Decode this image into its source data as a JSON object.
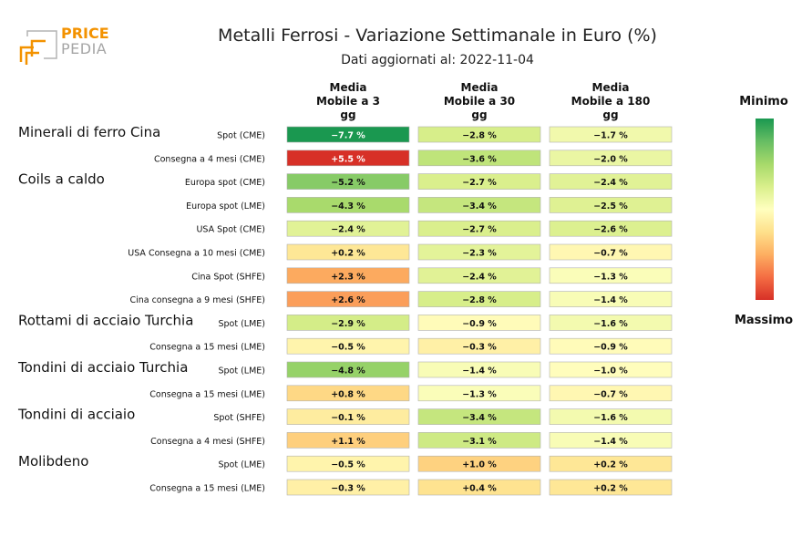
{
  "logo": {
    "brand_top": "PRICE",
    "brand_bottom": "PEDIA"
  },
  "chart_data": {
    "type": "heatmap",
    "title": "Metalli Ferrosi - Variazione Settimanale in Euro (%)",
    "subtitle": "Dati aggiornati al: 2022-11-04",
    "columns": [
      {
        "lines": [
          "Media",
          "Mobile a 3",
          "gg"
        ]
      },
      {
        "lines": [
          "Media",
          "Mobile a 30",
          "gg"
        ]
      },
      {
        "lines": [
          "Media",
          "Mobile a 180",
          "gg"
        ]
      }
    ],
    "groups": [
      {
        "name": "Minerali di ferro Cina",
        "rows": [
          {
            "label": "Spot (CME)",
            "values": [
              -7.7,
              -2.8,
              -1.7
            ],
            "display": [
              "−7.7 %",
              "−2.8 %",
              "−1.7 %"
            ]
          },
          {
            "label": "Consegna a 4 mesi (CME)",
            "values": [
              5.5,
              -3.6,
              -2.0
            ],
            "display": [
              "+5.5 %",
              "−3.6 %",
              "−2.0 %"
            ]
          }
        ]
      },
      {
        "name": "Coils a caldo",
        "rows": [
          {
            "label": "Europa spot (CME)",
            "values": [
              -5.2,
              -2.7,
              -2.4
            ],
            "display": [
              "−5.2 %",
              "−2.7 %",
              "−2.4 %"
            ]
          },
          {
            "label": "Europa spot (LME)",
            "values": [
              -4.3,
              -3.4,
              -2.5
            ],
            "display": [
              "−4.3 %",
              "−3.4 %",
              "−2.5 %"
            ]
          },
          {
            "label": "USA Spot (CME)",
            "values": [
              -2.4,
              -2.7,
              -2.6
            ],
            "display": [
              "−2.4 %",
              "−2.7 %",
              "−2.6 %"
            ]
          },
          {
            "label": "USA Consegna a 10 mesi (CME)",
            "values": [
              0.2,
              -2.3,
              -0.7
            ],
            "display": [
              "+0.2 %",
              "−2.3 %",
              "−0.7 %"
            ]
          },
          {
            "label": "Cina Spot (SHFE)",
            "values": [
              2.3,
              -2.4,
              -1.3
            ],
            "display": [
              "+2.3 %",
              "−2.4 %",
              "−1.3 %"
            ]
          },
          {
            "label": "Cina consegna a 9 mesi (SHFE)",
            "values": [
              2.6,
              -2.8,
              -1.4
            ],
            "display": [
              "+2.6 %",
              "−2.8 %",
              "−1.4 %"
            ]
          }
        ]
      },
      {
        "name": "Rottami di acciaio Turchia",
        "rows": [
          {
            "label": "Spot (LME)",
            "values": [
              -2.9,
              -0.9,
              -1.6
            ],
            "display": [
              "−2.9 %",
              "−0.9 %",
              "−1.6 %"
            ]
          },
          {
            "label": "Consegna a 15 mesi (LME)",
            "values": [
              -0.5,
              -0.3,
              -0.9
            ],
            "display": [
              "−0.5 %",
              "−0.3 %",
              "−0.9 %"
            ]
          }
        ]
      },
      {
        "name": "Tondini di acciaio Turchia",
        "rows": [
          {
            "label": "Spot (LME)",
            "values": [
              -4.8,
              -1.4,
              -1.0
            ],
            "display": [
              "−4.8 %",
              "−1.4 %",
              "−1.0 %"
            ]
          },
          {
            "label": "Consegna a 15 mesi (LME)",
            "values": [
              0.8,
              -1.3,
              -0.7
            ],
            "display": [
              "+0.8 %",
              "−1.3 %",
              "−0.7 %"
            ]
          }
        ]
      },
      {
        "name": "Tondini di acciaio",
        "rows": [
          {
            "label": "Spot (SHFE)",
            "values": [
              -0.1,
              -3.4,
              -1.6
            ],
            "display": [
              "−0.1 %",
              "−3.4 %",
              "−1.6 %"
            ]
          },
          {
            "label": "Consegna a 4 mesi (SHFE)",
            "values": [
              1.1,
              -3.1,
              -1.4
            ],
            "display": [
              "+1.1 %",
              "−3.1 %",
              "−1.4 %"
            ]
          }
        ]
      },
      {
        "name": "Molibdeno",
        "rows": [
          {
            "label": "Spot (LME)",
            "values": [
              -0.5,
              1.0,
              0.2
            ],
            "display": [
              "−0.5 %",
              "+1.0 %",
              "+0.2 %"
            ]
          },
          {
            "label": "Consegna a 15 mesi (LME)",
            "values": [
              -0.3,
              0.4,
              0.2
            ],
            "display": [
              "−0.3 %",
              "+0.4 %",
              "+0.2 %"
            ]
          }
        ]
      }
    ],
    "color_scale": {
      "min_label": "Minimo",
      "max_label": "Massimo",
      "domain": [
        -7.7,
        5.5
      ],
      "colors": [
        "#1a9850",
        "#66bd63",
        "#a6d96a",
        "#d9ef8b",
        "#ffffbf",
        "#fee08b",
        "#fdae61",
        "#f46d43",
        "#d73027"
      ]
    }
  }
}
